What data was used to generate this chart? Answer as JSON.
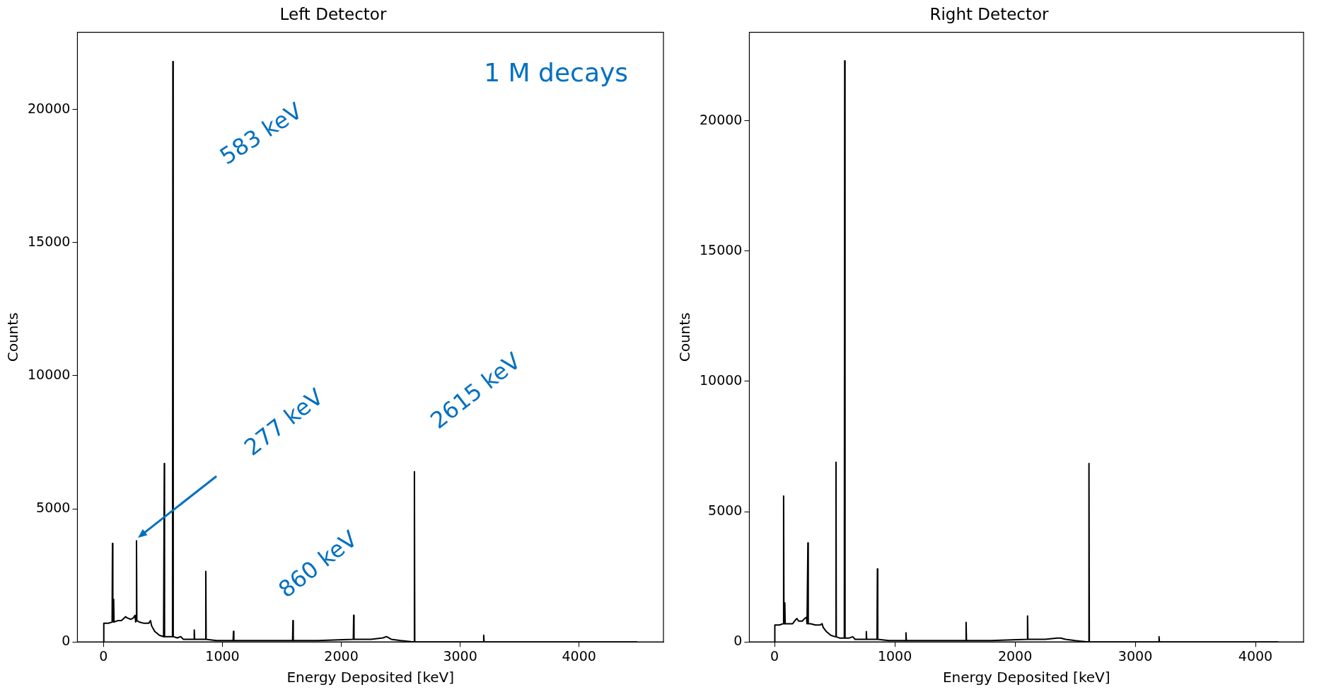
{
  "chart_data": [
    {
      "type": "line",
      "title": "Left Detector",
      "xlabel": "Energy Deposited [keV]",
      "ylabel": "Counts",
      "marker": "none",
      "x": [
        0,
        2,
        40,
        72,
        75,
        78,
        82,
        85,
        88,
        120,
        150,
        175,
        185,
        200,
        230,
        250,
        265,
        270,
        274,
        277,
        280,
        300,
        340,
        380,
        395,
        405,
        430,
        470,
        505,
        509,
        511,
        513,
        540,
        580,
        583,
        586,
        620,
        650,
        670,
        720,
        760,
        763,
        766,
        800,
        857,
        860,
        863,
        950,
        1090,
        1093,
        1096,
        1300,
        1590,
        1593,
        1596,
        1800,
        2101,
        2104,
        2107,
        2250,
        2350,
        2380,
        2420,
        2500,
        2612,
        2615,
        2618,
        2900,
        3195,
        3198,
        3201,
        3500,
        4000,
        4490
      ],
      "series": [
        {
          "color": "#000000",
          "values": [
            0,
            700,
            700,
            750,
            3700,
            800,
            750,
            1600,
            750,
            800,
            800,
            900,
            950,
            900,
            850,
            900,
            1000,
            750,
            800,
            3800,
            800,
            750,
            700,
            700,
            800,
            600,
            400,
            250,
            200,
            200,
            6700,
            200,
            200,
            200,
            21800,
            200,
            150,
            200,
            100,
            100,
            100,
            450,
            100,
            100,
            100,
            2650,
            100,
            50,
            50,
            400,
            50,
            50,
            50,
            800,
            50,
            50,
            100,
            1000,
            100,
            100,
            150,
            200,
            100,
            50,
            0,
            6400,
            0,
            0,
            0,
            250,
            0,
            0,
            0,
            0
          ]
        }
      ],
      "xlim": [
        -220,
        4710
      ],
      "xticks": [
        0,
        1000,
        2000,
        3000,
        4000
      ],
      "ylim": [
        0,
        22900
      ],
      "yticks": [
        0,
        5000,
        10000,
        15000,
        20000
      ],
      "annotations": [
        "1 M decays",
        {
          "text": "583 keV",
          "x": 583,
          "y": 21800
        },
        "277 keV",
        {
          "text": "860 keV",
          "x": 860,
          "y": 2650
        },
        {
          "text": "2615 keV",
          "x": 2615,
          "y": 6400
        }
      ]
    },
    {
      "type": "line",
      "title": "Right Detector",
      "xlabel": "Energy Deposited [keV]",
      "ylabel": "Counts",
      "marker": "none",
      "x": [
        0,
        2,
        40,
        72,
        75,
        78,
        82,
        85,
        88,
        120,
        150,
        175,
        185,
        200,
        230,
        250,
        265,
        270,
        274,
        277,
        280,
        300,
        340,
        380,
        395,
        405,
        430,
        470,
        505,
        509,
        511,
        513,
        540,
        580,
        583,
        586,
        620,
        650,
        670,
        720,
        760,
        763,
        766,
        800,
        852,
        855,
        858,
        950,
        1090,
        1093,
        1096,
        1300,
        1590,
        1593,
        1596,
        1800,
        2101,
        2104,
        2107,
        2250,
        2350,
        2380,
        2420,
        2500,
        2612,
        2615,
        2618,
        2900,
        3195,
        3198,
        3201,
        3500,
        4000,
        4190
      ],
      "series": [
        {
          "color": "#000000",
          "values": [
            0,
            650,
            650,
            700,
            5600,
            700,
            700,
            1500,
            700,
            700,
            700,
            850,
            900,
            800,
            800,
            900,
            950,
            700,
            700,
            3800,
            700,
            700,
            650,
            650,
            700,
            550,
            400,
            250,
            200,
            200,
            6900,
            200,
            150,
            150,
            22300,
            150,
            150,
            200,
            100,
            100,
            100,
            400,
            100,
            100,
            100,
            2800,
            100,
            50,
            50,
            350,
            50,
            50,
            50,
            750,
            50,
            50,
            100,
            1000,
            100,
            100,
            150,
            150,
            100,
            50,
            0,
            6850,
            0,
            0,
            0,
            200,
            0,
            0,
            0,
            0
          ]
        }
      ],
      "xlim": [
        -210,
        4400
      ],
      "xticks": [
        0,
        1000,
        2000,
        3000,
        4000
      ],
      "ylim": [
        0,
        23400
      ],
      "yticks": [
        0,
        5000,
        10000,
        15000,
        20000
      ]
    }
  ]
}
